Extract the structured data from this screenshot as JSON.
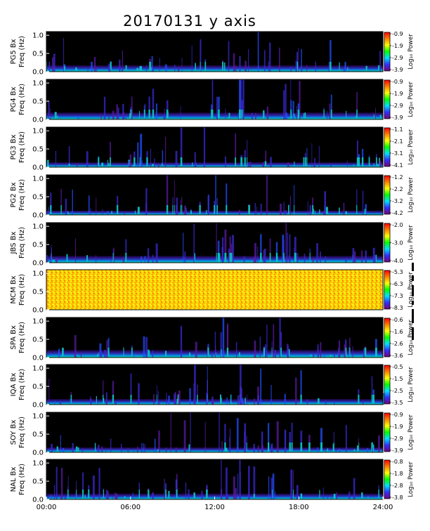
{
  "chart_data": {
    "type": "heatmap",
    "title": "20170131 y axis",
    "xlabel": "",
    "x_ticks": [
      "00:00",
      "06:00",
      "12:00",
      "18:00",
      "24:00"
    ],
    "x_range": [
      "00:00",
      "24:00"
    ],
    "y_ticks": [
      "0.0",
      "0.5",
      "1.0"
    ],
    "ylim": [
      0,
      1.1
    ],
    "freq_label": "Freq (Hz)",
    "colorbar_label": "Log₁₀ Power",
    "colorscale": [
      "#7a007a",
      "#3030ff",
      "#00e0ff",
      "#00ff00",
      "#ffff00",
      "#ff8000",
      "#ff0000"
    ],
    "background_color": "#000000",
    "panels": [
      {
        "station": "PG5 Bx",
        "cbar_ticks": [
          "-0.9",
          "-1.9",
          "-2.9",
          "-3.9"
        ]
      },
      {
        "station": "PG4 Bx",
        "cbar_ticks": [
          "-0.9",
          "-1.9",
          "-2.9",
          "-3.9"
        ]
      },
      {
        "station": "PG3 Bx",
        "cbar_ticks": [
          "-1.1",
          "-2.1",
          "-3.1",
          "-4.1"
        ]
      },
      {
        "station": "PG2 Bx",
        "cbar_ticks": [
          "-1.2",
          "-2.2",
          "-3.2",
          "-4.2"
        ]
      },
      {
        "station": "JBS Bx",
        "cbar_ticks": [
          "-2.0",
          "-3.0",
          "-4.0"
        ]
      },
      {
        "station": "MCM Bx",
        "cbar_ticks": [
          "-5.3",
          "-6.3",
          "-7.3",
          "-8.3"
        ]
      },
      {
        "station": "SPA Bx",
        "cbar_ticks": [
          "-0.6",
          "-1.6",
          "-2.6",
          "-3.6"
        ]
      },
      {
        "station": "IQA Bx",
        "cbar_ticks": [
          "-0.5",
          "-1.5",
          "-2.5",
          "-3.5"
        ]
      },
      {
        "station": "SOY Bx",
        "cbar_ticks": [
          "-0.9",
          "-1.9",
          "-2.9",
          "-3.9"
        ]
      },
      {
        "station": "NAL Bx",
        "cbar_ticks": [
          "-0.8",
          "-1.8",
          "-2.8",
          "-3.8"
        ]
      }
    ]
  }
}
